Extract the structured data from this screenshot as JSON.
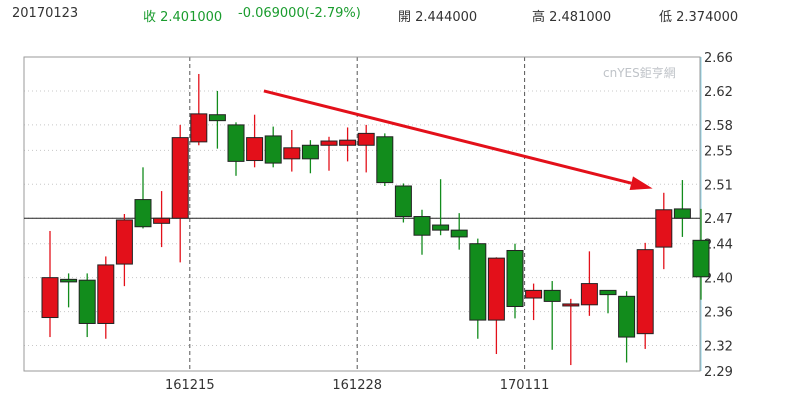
{
  "header": {
    "date": "20170123",
    "close": "收 2.401000",
    "change": "-0.069000(-2.79%)",
    "open": "開 2.444000",
    "high": "高 2.481000",
    "low": "低 2.374000"
  },
  "watermark": "cnYES鉅亨網",
  "colors": {
    "up": "#e3101a",
    "down": "#128c1c",
    "arrow": "#e3101a",
    "header_change": "#1a9c2e"
  },
  "chart_data": {
    "type": "candlestick",
    "title": "",
    "ylim": [
      2.29,
      2.66
    ],
    "y_ticks": [
      "2.66",
      "2.62",
      "2.58",
      "2.55",
      "2.51",
      "2.47",
      "2.44",
      "2.40",
      "2.36",
      "2.32",
      "2.29"
    ],
    "x_ticks": [
      {
        "label": "161215",
        "index": 8
      },
      {
        "label": "161228",
        "index": 17
      },
      {
        "label": "170111",
        "index": 26
      }
    ],
    "reference_line": 2.47,
    "series": [
      {
        "values": [
          {
            "o": 2.353,
            "h": 2.455,
            "l": 2.33,
            "c": 2.4
          },
          {
            "o": 2.398,
            "h": 2.405,
            "l": 2.365,
            "c": 2.395
          },
          {
            "o": 2.397,
            "h": 2.405,
            "l": 2.33,
            "c": 2.346
          },
          {
            "o": 2.346,
            "h": 2.425,
            "l": 2.328,
            "c": 2.415
          },
          {
            "o": 2.416,
            "h": 2.475,
            "l": 2.39,
            "c": 2.468
          },
          {
            "o": 2.492,
            "h": 2.53,
            "l": 2.458,
            "c": 2.46
          },
          {
            "o": 2.464,
            "h": 2.502,
            "l": 2.436,
            "c": 2.47
          },
          {
            "o": 2.47,
            "h": 2.58,
            "l": 2.418,
            "c": 2.565
          },
          {
            "o": 2.56,
            "h": 2.64,
            "l": 2.556,
            "c": 2.593
          },
          {
            "o": 2.592,
            "h": 2.62,
            "l": 2.552,
            "c": 2.585
          },
          {
            "o": 2.58,
            "h": 2.583,
            "l": 2.52,
            "c": 2.537
          },
          {
            "o": 2.538,
            "h": 2.592,
            "l": 2.53,
            "c": 2.565
          },
          {
            "o": 2.567,
            "h": 2.578,
            "l": 2.53,
            "c": 2.535
          },
          {
            "o": 2.54,
            "h": 2.574,
            "l": 2.525,
            "c": 2.553
          },
          {
            "o": 2.556,
            "h": 2.562,
            "l": 2.523,
            "c": 2.54
          },
          {
            "o": 2.556,
            "h": 2.566,
            "l": 2.526,
            "c": 2.561
          },
          {
            "o": 2.556,
            "h": 2.577,
            "l": 2.537,
            "c": 2.562
          },
          {
            "o": 2.556,
            "h": 2.58,
            "l": 2.524,
            "c": 2.57
          },
          {
            "o": 2.566,
            "h": 2.57,
            "l": 2.508,
            "c": 2.512
          },
          {
            "o": 2.508,
            "h": 2.511,
            "l": 2.465,
            "c": 2.472
          },
          {
            "o": 2.472,
            "h": 2.48,
            "l": 2.427,
            "c": 2.45
          },
          {
            "o": 2.462,
            "h": 2.516,
            "l": 2.45,
            "c": 2.456
          },
          {
            "o": 2.456,
            "h": 2.476,
            "l": 2.433,
            "c": 2.448
          },
          {
            "o": 2.44,
            "h": 2.446,
            "l": 2.328,
            "c": 2.35
          },
          {
            "o": 2.35,
            "h": 2.424,
            "l": 2.31,
            "c": 2.423
          },
          {
            "o": 2.432,
            "h": 2.44,
            "l": 2.352,
            "c": 2.366
          },
          {
            "o": 2.376,
            "h": 2.393,
            "l": 2.35,
            "c": 2.385
          },
          {
            "o": 2.385,
            "h": 2.396,
            "l": 2.315,
            "c": 2.372
          },
          {
            "o": 2.368,
            "h": 2.375,
            "l": 2.297,
            "c": 2.369
          },
          {
            "o": 2.368,
            "h": 2.431,
            "l": 2.355,
            "c": 2.393
          },
          {
            "o": 2.385,
            "h": 2.385,
            "l": 2.358,
            "c": 2.38
          },
          {
            "o": 2.378,
            "h": 2.384,
            "l": 2.3,
            "c": 2.33
          },
          {
            "o": 2.334,
            "h": 2.441,
            "l": 2.316,
            "c": 2.433
          },
          {
            "o": 2.436,
            "h": 2.5,
            "l": 2.41,
            "c": 2.48
          },
          {
            "o": 2.481,
            "h": 2.515,
            "l": 2.448,
            "c": 2.47
          },
          {
            "o": 2.444,
            "h": 2.481,
            "l": 2.374,
            "c": 2.401
          }
        ]
      }
    ],
    "trend_arrow": {
      "from": {
        "index": 11.5,
        "value": 2.62
      },
      "to": {
        "index": 32.4,
        "value": 2.505
      }
    }
  }
}
